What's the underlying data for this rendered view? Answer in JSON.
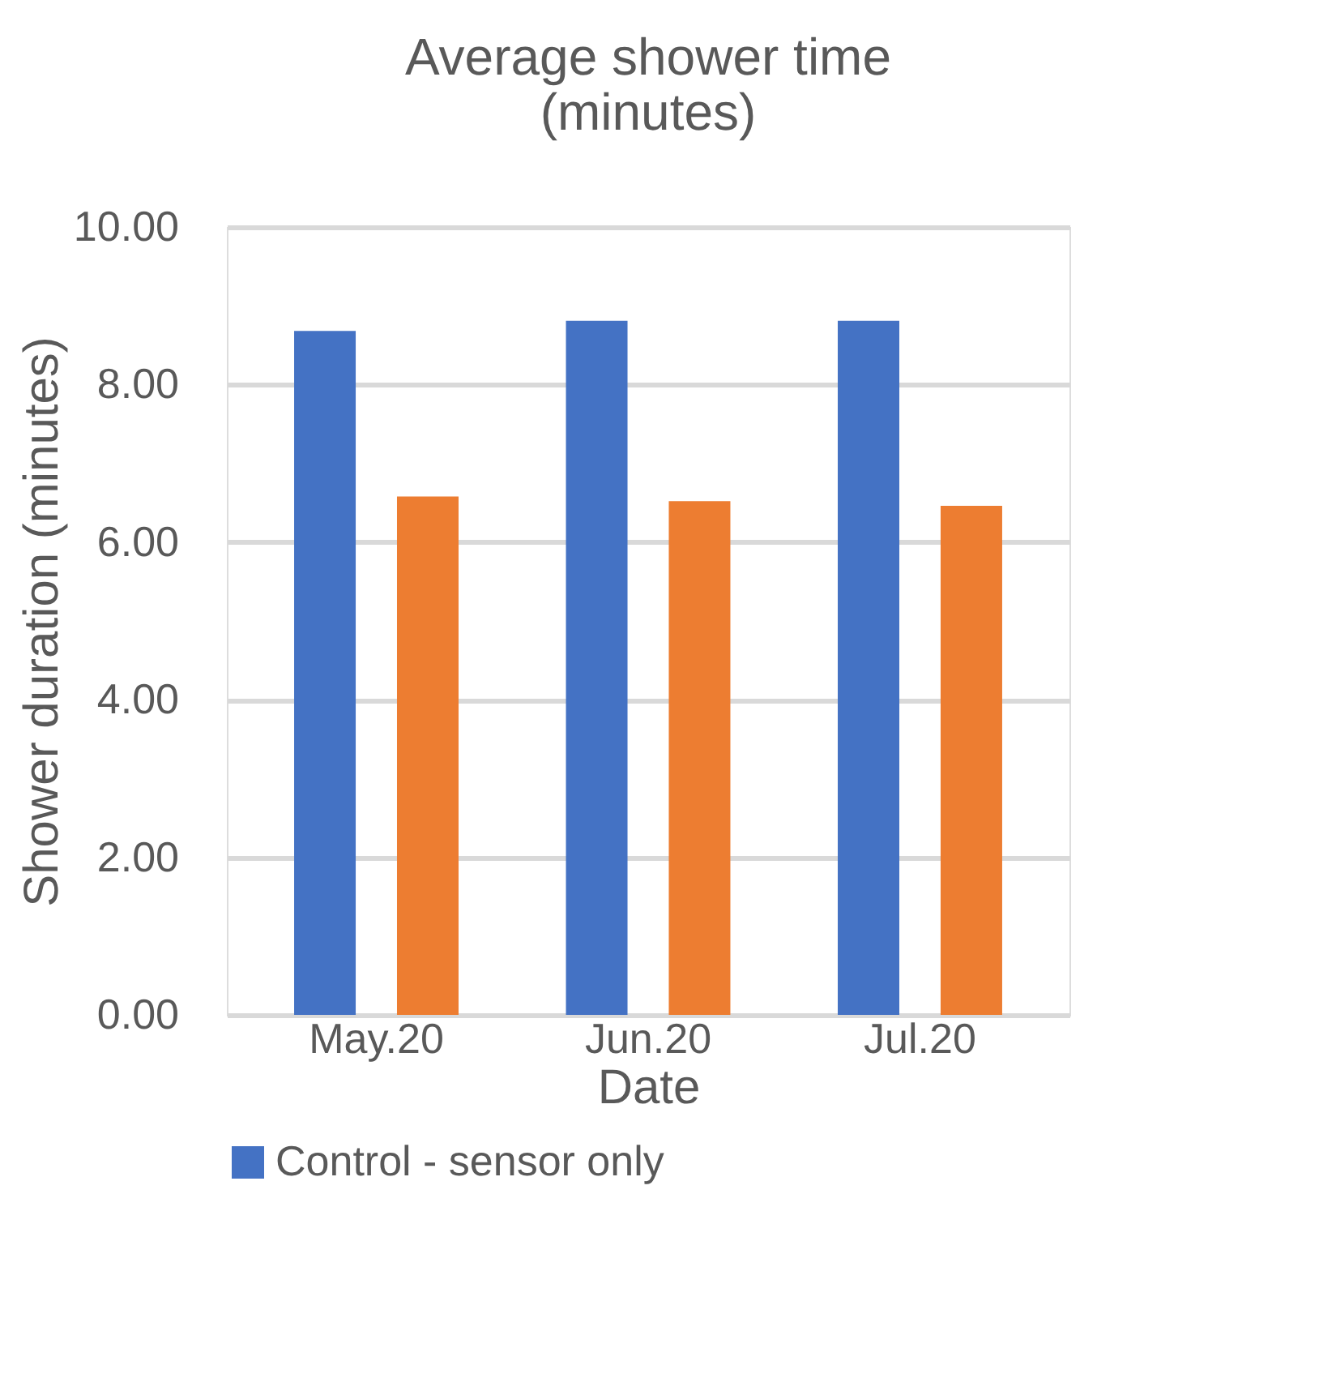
{
  "chart_data": {
    "type": "bar",
    "title": "Average shower time (minutes)",
    "xlabel": "Date",
    "ylabel": "Shower duration (minutes)",
    "categories": [
      "May.20",
      "Jun.20",
      "Jul.20"
    ],
    "series": [
      {
        "name": "Control - sensor only",
        "color": "#4472c4",
        "values": [
          8.68,
          8.81,
          8.81
        ]
      },
      {
        "color": "#ed7d31",
        "values": [
          6.58,
          6.52,
          6.46
        ]
      }
    ],
    "ylim": [
      0,
      10
    ],
    "yticks": [
      {
        "value": 0,
        "label": "0.00"
      },
      {
        "value": 2,
        "label": "2.00"
      },
      {
        "value": 4,
        "label": "4.00"
      },
      {
        "value": 6,
        "label": "6.00"
      },
      {
        "value": 8,
        "label": "8.00"
      },
      {
        "value": 10,
        "label": "10.00"
      }
    ],
    "grid": "y",
    "legend": "bottom"
  }
}
